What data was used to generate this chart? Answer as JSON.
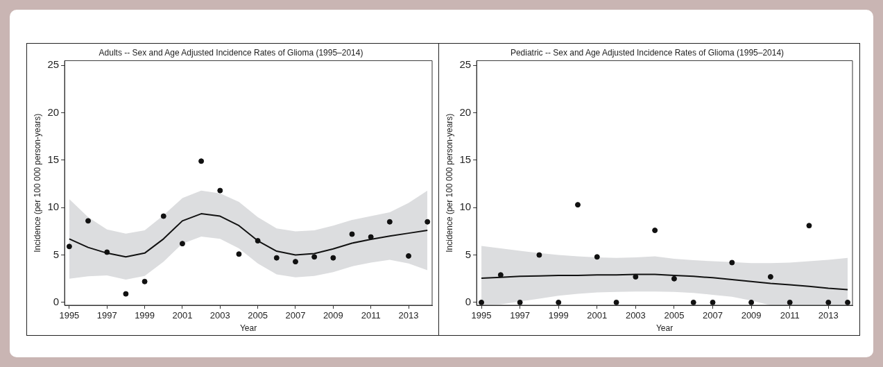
{
  "chart_data": [
    {
      "type": "scatter",
      "title": "Adults -- Sex and Age Adjusted Incidence Rates of Glioma (1995–2014)",
      "xlabel": "Year",
      "ylabel": "Incidence (per 100 000 person-years)",
      "x": [
        1995,
        1996,
        1997,
        1998,
        1999,
        2000,
        2001,
        2002,
        2003,
        2004,
        2005,
        2006,
        2007,
        2008,
        2009,
        2010,
        2011,
        2012,
        2013,
        2014
      ],
      "series": [
        {
          "marker": "circle",
          "color": "#111111",
          "values": [
            5.9,
            8.6,
            5.3,
            0.9,
            2.2,
            9.1,
            6.2,
            14.9,
            11.8,
            5.1,
            6.5,
            4.7,
            4.3,
            4.8,
            4.7,
            7.2,
            6.9,
            8.5,
            4.9,
            8.5
          ]
        },
        {
          "type": "line",
          "marker": "none",
          "color": "#111111",
          "values": [
            6.7,
            5.8,
            5.2,
            4.8,
            5.2,
            6.7,
            8.6,
            9.35,
            9.1,
            8.1,
            6.5,
            5.4,
            5.0,
            5.15,
            5.65,
            6.25,
            6.65,
            7.0,
            7.3,
            7.6
          ],
          "lower": [
            2.5,
            2.75,
            2.85,
            2.4,
            2.8,
            4.3,
            6.2,
            6.95,
            6.7,
            5.7,
            4.1,
            2.95,
            2.65,
            2.8,
            3.2,
            3.8,
            4.2,
            4.5,
            4.1,
            3.4
          ],
          "upper": [
            10.9,
            9.0,
            7.7,
            7.25,
            7.6,
            9.2,
            11.0,
            11.8,
            11.5,
            10.6,
            9.0,
            7.8,
            7.5,
            7.6,
            8.1,
            8.7,
            9.1,
            9.5,
            10.5,
            11.8
          ]
        }
      ],
      "xlim": [
        1994.75,
        2014.25
      ],
      "xticks": [
        1995,
        1997,
        1999,
        2001,
        2003,
        2005,
        2007,
        2009,
        2011,
        2013
      ],
      "ylim": [
        -0.3,
        25.5
      ],
      "yticks": [
        0,
        5,
        10,
        15,
        20,
        25
      ],
      "line_style": "solid",
      "legend": false,
      "grid": false
    },
    {
      "type": "scatter",
      "title": "Pediatric -- Sex and Age Adjusted Incidence Rates of Glioma (1995–2014)",
      "xlabel": "Year",
      "ylabel": "Incidence (per 100 000 person-years)",
      "x": [
        1995,
        1996,
        1997,
        1998,
        1999,
        2000,
        2001,
        2002,
        2003,
        2004,
        2005,
        2006,
        2007,
        2008,
        2009,
        2010,
        2011,
        2012,
        2013,
        2014
      ],
      "series": [
        {
          "marker": "circle",
          "color": "#111111",
          "values": [
            0,
            2.9,
            0,
            5.0,
            0,
            10.3,
            4.8,
            0,
            2.7,
            7.6,
            2.5,
            0,
            0,
            4.2,
            0,
            2.7,
            0,
            8.1,
            0,
            0
          ]
        },
        {
          "type": "line",
          "marker": "none",
          "color": "#111111",
          "values": [
            2.55,
            2.65,
            2.75,
            2.8,
            2.85,
            2.85,
            2.9,
            2.9,
            2.95,
            2.95,
            2.85,
            2.75,
            2.6,
            2.4,
            2.2,
            2.0,
            1.85,
            1.7,
            1.5,
            1.35
          ],
          "lower": [
            -0.3,
            -0.2,
            0.1,
            0.4,
            0.7,
            0.9,
            1.05,
            1.1,
            1.15,
            1.15,
            1.1,
            1.0,
            0.8,
            0.6,
            0.2,
            -0.3,
            -0.3,
            -0.3,
            -0.3,
            -0.3
          ],
          "upper": [
            5.95,
            5.7,
            5.45,
            5.2,
            5.0,
            4.85,
            4.75,
            4.7,
            4.75,
            4.85,
            4.6,
            4.45,
            4.35,
            4.25,
            4.15,
            4.15,
            4.2,
            4.35,
            4.5,
            4.7
          ]
        }
      ],
      "xlim": [
        1994.75,
        2014.25
      ],
      "xticks": [
        1995,
        1997,
        1999,
        2001,
        2003,
        2005,
        2007,
        2009,
        2011,
        2013
      ],
      "ylim": [
        -0.3,
        25.5
      ],
      "yticks": [
        0,
        5,
        10,
        15,
        20,
        25
      ],
      "line_style": "solid",
      "legend": false,
      "grid": false
    }
  ]
}
